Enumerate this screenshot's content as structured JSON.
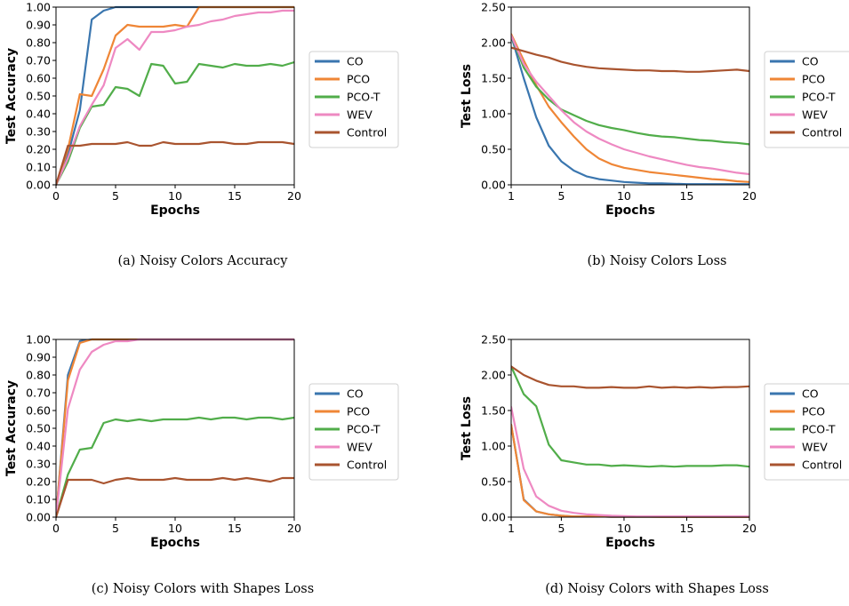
{
  "colors": {
    "CO": "#3a76af",
    "PCO": "#ef8636",
    "PCO-T": "#51ad4a",
    "WEV": "#ee89c2",
    "Control": "#a9542f"
  },
  "chart_data": [
    {
      "type": "line",
      "caption": "(a) Noisy Colors Accuracy",
      "xlabel": "Epochs",
      "ylabel": "Test Accuracy",
      "xlim": [
        0,
        20
      ],
      "ylim": [
        0,
        1.0
      ],
      "xticks": [
        "0",
        "5",
        "10",
        "15",
        "20"
      ],
      "yticks": [
        "0.00",
        "0.10",
        "0.20",
        "0.30",
        "0.40",
        "0.50",
        "0.60",
        "0.70",
        "0.80",
        "0.90",
        "1.00"
      ],
      "grid": false,
      "legend": "right",
      "x": [
        0,
        1,
        2,
        3,
        4,
        5,
        6,
        7,
        8,
        9,
        10,
        11,
        12,
        13,
        14,
        15,
        16,
        17,
        18,
        19,
        20
      ],
      "series": [
        {
          "name": "CO",
          "values": [
            0.0,
            0.17,
            0.42,
            0.93,
            0.98,
            1.0,
            1.0,
            1.0,
            1.0,
            1.0,
            1.0,
            1.0,
            1.0,
            1.0,
            1.0,
            1.0,
            1.0,
            1.0,
            1.0,
            1.0,
            1.0
          ]
        },
        {
          "name": "PCO",
          "values": [
            0.0,
            0.2,
            0.51,
            0.5,
            0.65,
            0.84,
            0.9,
            0.89,
            0.89,
            0.89,
            0.9,
            0.89,
            1.0,
            1.0,
            1.0,
            1.0,
            1.0,
            1.0,
            1.0,
            1.0,
            1.0
          ]
        },
        {
          "name": "PCO-T",
          "values": [
            0.0,
            0.13,
            0.32,
            0.44,
            0.45,
            0.55,
            0.54,
            0.5,
            0.68,
            0.67,
            0.57,
            0.58,
            0.68,
            0.67,
            0.66,
            0.68,
            0.67,
            0.67,
            0.68,
            0.67,
            0.69
          ]
        },
        {
          "name": "WEV",
          "values": [
            0.0,
            0.15,
            0.33,
            0.45,
            0.56,
            0.77,
            0.82,
            0.76,
            0.86,
            0.86,
            0.87,
            0.89,
            0.9,
            0.92,
            0.93,
            0.95,
            0.96,
            0.97,
            0.97,
            0.98,
            0.98
          ]
        },
        {
          "name": "Control",
          "values": [
            0.0,
            0.22,
            0.22,
            0.23,
            0.23,
            0.23,
            0.24,
            0.22,
            0.22,
            0.24,
            0.23,
            0.23,
            0.23,
            0.24,
            0.24,
            0.23,
            0.23,
            0.24,
            0.24,
            0.24,
            0.23
          ]
        }
      ]
    },
    {
      "type": "line",
      "caption": "(b) Noisy Colors Loss",
      "xlabel": "Epochs",
      "ylabel": "Test Loss",
      "xlim": [
        1,
        20
      ],
      "ylim": [
        0,
        2.5
      ],
      "xticks": [
        "1",
        "5",
        "10",
        "15",
        "20"
      ],
      "yticks": [
        "0.00",
        "0.50",
        "1.00",
        "1.50",
        "2.00",
        "2.50"
      ],
      "grid": false,
      "legend": "right",
      "x": [
        1,
        2,
        3,
        4,
        5,
        6,
        7,
        8,
        9,
        10,
        11,
        12,
        13,
        14,
        15,
        16,
        17,
        18,
        19,
        20
      ],
      "series": [
        {
          "name": "CO",
          "values": [
            2.1,
            1.5,
            0.95,
            0.55,
            0.33,
            0.2,
            0.12,
            0.08,
            0.06,
            0.04,
            0.03,
            0.02,
            0.02,
            0.015,
            0.01,
            0.01,
            0.01,
            0.01,
            0.01,
            0.01
          ]
        },
        {
          "name": "PCO",
          "values": [
            2.12,
            1.75,
            1.4,
            1.1,
            0.88,
            0.68,
            0.5,
            0.37,
            0.29,
            0.24,
            0.21,
            0.18,
            0.16,
            0.14,
            0.12,
            0.1,
            0.08,
            0.07,
            0.05,
            0.04
          ]
        },
        {
          "name": "PCO-T",
          "values": [
            2.1,
            1.65,
            1.38,
            1.2,
            1.06,
            0.98,
            0.9,
            0.84,
            0.8,
            0.77,
            0.73,
            0.7,
            0.68,
            0.67,
            0.65,
            0.63,
            0.62,
            0.6,
            0.59,
            0.57
          ]
        },
        {
          "name": "WEV",
          "values": [
            2.1,
            1.7,
            1.45,
            1.25,
            1.05,
            0.88,
            0.75,
            0.65,
            0.57,
            0.5,
            0.45,
            0.4,
            0.36,
            0.32,
            0.28,
            0.25,
            0.23,
            0.2,
            0.17,
            0.15
          ]
        },
        {
          "name": "Control",
          "values": [
            1.93,
            1.88,
            1.83,
            1.79,
            1.73,
            1.69,
            1.66,
            1.64,
            1.63,
            1.62,
            1.61,
            1.61,
            1.6,
            1.6,
            1.59,
            1.59,
            1.6,
            1.61,
            1.62,
            1.6
          ]
        }
      ]
    },
    {
      "type": "line",
      "caption": "(c) Noisy Colors with Shapes Loss",
      "xlabel": "Epochs",
      "ylabel": "Test Accuracy",
      "xlim": [
        0,
        20
      ],
      "ylim": [
        0,
        1.0
      ],
      "xticks": [
        "0",
        "5",
        "10",
        "15",
        "20"
      ],
      "yticks": [
        "0.00",
        "0.10",
        "0.20",
        "0.30",
        "0.40",
        "0.50",
        "0.60",
        "0.70",
        "0.80",
        "0.90",
        "1.00"
      ],
      "grid": false,
      "legend": "right",
      "x": [
        0,
        1,
        2,
        3,
        4,
        5,
        6,
        7,
        8,
        9,
        10,
        11,
        12,
        13,
        14,
        15,
        16,
        17,
        18,
        19,
        20
      ],
      "series": [
        {
          "name": "CO",
          "values": [
            0.0,
            0.8,
            0.99,
            1.0,
            1.0,
            1.0,
            1.0,
            1.0,
            1.0,
            1.0,
            1.0,
            1.0,
            1.0,
            1.0,
            1.0,
            1.0,
            1.0,
            1.0,
            1.0,
            1.0,
            1.0
          ]
        },
        {
          "name": "PCO",
          "values": [
            0.0,
            0.77,
            0.98,
            1.0,
            1.0,
            1.0,
            1.0,
            1.0,
            1.0,
            1.0,
            1.0,
            1.0,
            1.0,
            1.0,
            1.0,
            1.0,
            1.0,
            1.0,
            1.0,
            1.0,
            1.0
          ]
        },
        {
          "name": "PCO-T",
          "values": [
            0.0,
            0.24,
            0.38,
            0.39,
            0.53,
            0.55,
            0.54,
            0.55,
            0.54,
            0.55,
            0.55,
            0.55,
            0.56,
            0.55,
            0.56,
            0.56,
            0.55,
            0.56,
            0.56,
            0.55,
            0.56
          ]
        },
        {
          "name": "WEV",
          "values": [
            0.0,
            0.61,
            0.83,
            0.93,
            0.97,
            0.99,
            0.99,
            1.0,
            1.0,
            1.0,
            1.0,
            1.0,
            1.0,
            1.0,
            1.0,
            1.0,
            1.0,
            1.0,
            1.0,
            1.0,
            1.0
          ]
        },
        {
          "name": "Control",
          "values": [
            0.0,
            0.21,
            0.21,
            0.21,
            0.19,
            0.21,
            0.22,
            0.21,
            0.21,
            0.21,
            0.22,
            0.21,
            0.21,
            0.21,
            0.22,
            0.21,
            0.22,
            0.21,
            0.2,
            0.22,
            0.22
          ]
        }
      ]
    },
    {
      "type": "line",
      "caption": "(d) Noisy Colors with Shapes Loss",
      "xlabel": "Epochs",
      "ylabel": "Test Loss",
      "xlim": [
        1,
        20
      ],
      "ylim": [
        0,
        2.5
      ],
      "xticks": [
        "1",
        "5",
        "10",
        "15",
        "20"
      ],
      "yticks": [
        "0.00",
        "0.50",
        "1.00",
        "1.50",
        "2.00",
        "2.50"
      ],
      "grid": false,
      "legend": "right",
      "x": [
        1,
        2,
        3,
        4,
        5,
        6,
        7,
        8,
        9,
        10,
        11,
        12,
        13,
        14,
        15,
        16,
        17,
        18,
        19,
        20
      ],
      "series": [
        {
          "name": "CO",
          "values": [
            1.3,
            0.25,
            0.08,
            0.04,
            0.02,
            0.01,
            0.01,
            0.01,
            0.005,
            0.005,
            0.004,
            0.004,
            0.003,
            0.003,
            0.003,
            0.003,
            0.003,
            0.003,
            0.003,
            0.003
          ]
        },
        {
          "name": "PCO",
          "values": [
            1.3,
            0.24,
            0.08,
            0.04,
            0.02,
            0.01,
            0.01,
            0.01,
            0.005,
            0.005,
            0.004,
            0.004,
            0.003,
            0.003,
            0.003,
            0.003,
            0.003,
            0.003,
            0.003,
            0.003
          ]
        },
        {
          "name": "PCO-T",
          "values": [
            2.12,
            1.73,
            1.56,
            1.02,
            0.8,
            0.77,
            0.74,
            0.74,
            0.72,
            0.73,
            0.72,
            0.71,
            0.72,
            0.71,
            0.72,
            0.72,
            0.72,
            0.73,
            0.73,
            0.71
          ]
        },
        {
          "name": "WEV",
          "values": [
            1.55,
            0.68,
            0.29,
            0.16,
            0.09,
            0.06,
            0.04,
            0.03,
            0.02,
            0.015,
            0.01,
            0.01,
            0.01,
            0.01,
            0.01,
            0.01,
            0.01,
            0.01,
            0.01,
            0.01
          ]
        },
        {
          "name": "Control",
          "values": [
            2.12,
            2.0,
            1.92,
            1.86,
            1.84,
            1.84,
            1.82,
            1.82,
            1.83,
            1.82,
            1.82,
            1.84,
            1.82,
            1.83,
            1.82,
            1.83,
            1.82,
            1.83,
            1.83,
            1.84
          ]
        }
      ]
    }
  ]
}
